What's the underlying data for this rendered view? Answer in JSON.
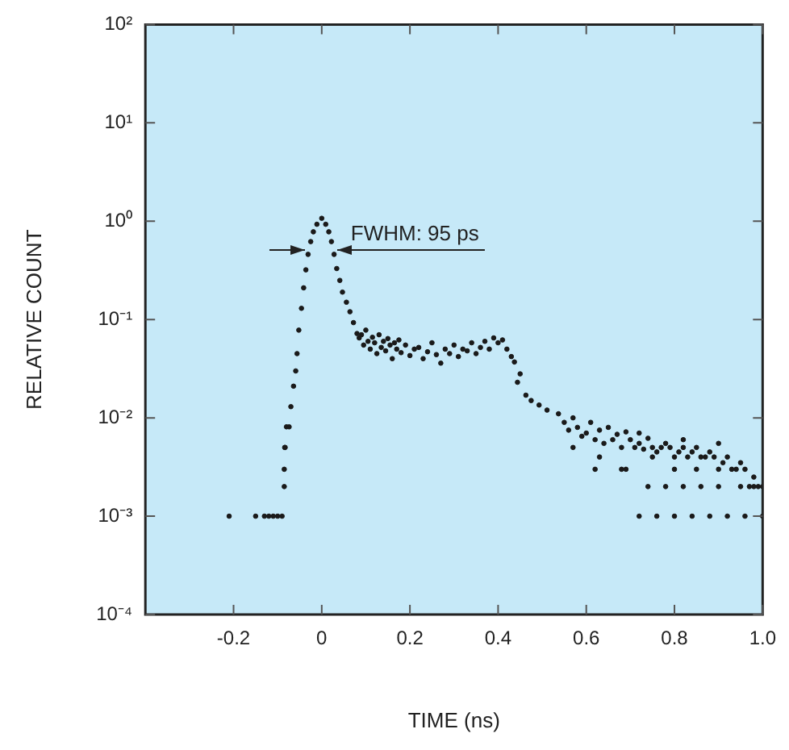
{
  "chart_data": {
    "type": "scatter",
    "xlabel": "TIME (ns)",
    "ylabel": "RELATIVE COUNT",
    "log": "y",
    "marker": "circle",
    "grid": false,
    "legend": false,
    "xlim": [
      -0.4,
      1.0
    ],
    "ylim": [
      0.0001,
      100
    ],
    "xticks": [
      -0.2,
      0,
      0.2,
      0.4,
      0.6,
      0.8,
      {
        "value": 1,
        "label": "1.0"
      }
    ],
    "yticks": [
      {
        "value": 0.0001,
        "label": "10⁻⁴"
      },
      {
        "value": 0.001,
        "label": "10⁻³"
      },
      {
        "value": 0.01,
        "label": "10⁻²"
      },
      {
        "value": 0.1,
        "label": "10⁻¹"
      },
      {
        "value": 1,
        "label": "10⁰"
      },
      {
        "value": 10,
        "label": "10¹"
      },
      {
        "value": 100,
        "label": "10²"
      }
    ],
    "annotations": [
      "FWHM: 95 ps"
    ],
    "series": [
      {
        "color": "#1a1a1a",
        "x": [
          -0.21,
          -0.15,
          -0.13,
          -0.12,
          -0.11,
          -0.1,
          -0.09,
          -0.085,
          -0.085,
          -0.084,
          -0.083,
          -0.08,
          -0.074,
          -0.07,
          -0.064,
          -0.059,
          -0.056,
          -0.052,
          -0.046,
          -0.041,
          -0.036,
          -0.031,
          -0.025,
          -0.019,
          -0.011,
          0,
          0.009,
          0.016,
          0.022,
          0.028,
          0.034,
          0.041,
          0.047,
          0.056,
          0.064,
          0.072,
          0.08,
          0.085,
          0.09,
          0.095,
          0.1,
          0.105,
          0.11,
          0.115,
          0.12,
          0.125,
          0.13,
          0.135,
          0.14,
          0.145,
          0.15,
          0.155,
          0.16,
          0.165,
          0.17,
          0.175,
          0.18,
          0.19,
          0.2,
          0.21,
          0.22,
          0.23,
          0.24,
          0.25,
          0.26,
          0.27,
          0.28,
          0.29,
          0.3,
          0.31,
          0.32,
          0.33,
          0.34,
          0.35,
          0.36,
          0.37,
          0.38,
          0.39,
          0.4,
          0.41,
          0.42,
          0.43,
          0.437,
          0.444,
          0.45,
          0.463,
          0.475,
          0.493,
          0.511,
          0.537,
          0.55,
          0.56,
          0.57,
          0.58,
          0.59,
          0.6,
          0.61,
          0.62,
          0.63,
          0.64,
          0.65,
          0.66,
          0.67,
          0.68,
          0.69,
          0.7,
          0.71,
          0.72,
          0.73,
          0.74,
          0.75,
          0.76,
          0.77,
          0.78,
          0.79,
          0.8,
          0.81,
          0.82,
          0.83,
          0.84,
          0.85,
          0.86,
          0.87,
          0.88,
          0.89,
          0.9,
          0.91,
          0.92,
          0.93,
          0.94,
          0.95,
          0.96,
          0.97,
          0.98,
          0.99,
          1.0,
          0.72,
          0.76,
          0.8,
          0.84,
          0.88,
          0.92,
          0.96,
          1.0,
          0.62,
          0.68,
          0.74,
          0.78,
          0.82,
          0.86,
          0.9,
          0.95,
          0.98,
          0.57,
          0.63,
          0.69,
          0.75,
          0.8,
          0.85,
          0.72,
          0.82,
          0.9
        ],
        "values": [
          0.001,
          0.001,
          0.001,
          0.001,
          0.001,
          0.001,
          0.001,
          0.002,
          0.003,
          0.005,
          0.005,
          0.0081,
          0.0081,
          0.013,
          0.021,
          0.03,
          0.045,
          0.078,
          0.13,
          0.21,
          0.32,
          0.46,
          0.62,
          0.78,
          0.93,
          1.07,
          0.93,
          0.78,
          0.62,
          0.46,
          0.33,
          0.25,
          0.19,
          0.15,
          0.12,
          0.093,
          0.072,
          0.065,
          0.07,
          0.055,
          0.078,
          0.06,
          0.05,
          0.066,
          0.058,
          0.045,
          0.07,
          0.052,
          0.06,
          0.048,
          0.064,
          0.055,
          0.04,
          0.058,
          0.05,
          0.062,
          0.046,
          0.055,
          0.043,
          0.05,
          0.052,
          0.04,
          0.047,
          0.058,
          0.044,
          0.036,
          0.05,
          0.045,
          0.055,
          0.042,
          0.05,
          0.048,
          0.058,
          0.045,
          0.052,
          0.06,
          0.05,
          0.065,
          0.058,
          0.062,
          0.05,
          0.042,
          0.037,
          0.023,
          0.028,
          0.017,
          0.015,
          0.0135,
          0.012,
          0.011,
          0.009,
          0.0075,
          0.01,
          0.008,
          0.0065,
          0.007,
          0.009,
          0.006,
          0.0075,
          0.0055,
          0.008,
          0.006,
          0.0068,
          0.005,
          0.0072,
          0.006,
          0.005,
          0.0055,
          0.0048,
          0.0062,
          0.005,
          0.0045,
          0.005,
          0.0055,
          0.005,
          0.004,
          0.0045,
          0.005,
          0.004,
          0.0045,
          0.005,
          0.004,
          0.004,
          0.0045,
          0.004,
          0.003,
          0.0035,
          0.004,
          0.003,
          0.003,
          0.0035,
          0.003,
          0.002,
          0.0025,
          0.002,
          0.002,
          0.001,
          0.001,
          0.001,
          0.001,
          0.001,
          0.001,
          0.001,
          0.001,
          0.003,
          0.003,
          0.002,
          0.002,
          0.002,
          0.002,
          0.002,
          0.002,
          0.002,
          0.005,
          0.004,
          0.003,
          0.004,
          0.003,
          0.003,
          0.007,
          0.006,
          0.0055
        ]
      }
    ]
  }
}
